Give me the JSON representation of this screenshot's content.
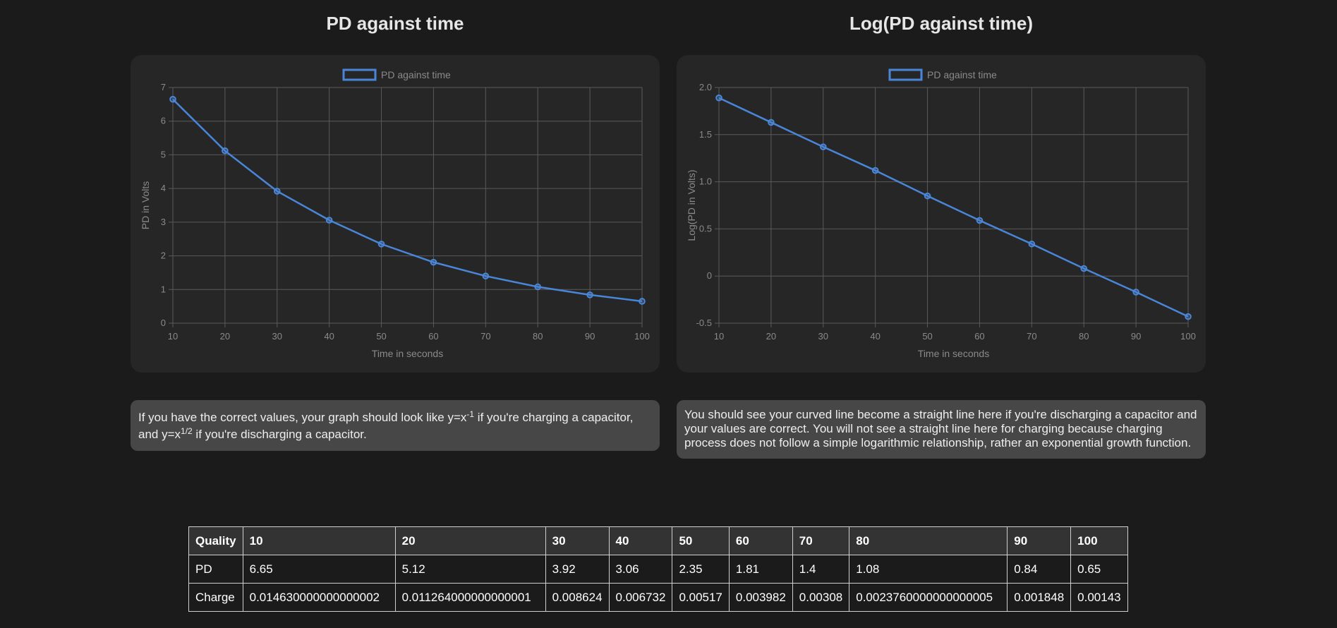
{
  "left_panel": {
    "title": "PD against time",
    "note_parts": [
      "If you have the correct values, your graph should look like y=x",
      "-1",
      " if you're charging a capacitor, and y=x",
      "1/2",
      " if you're discharging a capacitor."
    ]
  },
  "right_panel": {
    "title": "Log(PD against time)",
    "note": "You should see your curved line become a straight line here if you're discharging a capacitor and your values are correct. You will not see a straight line here for charging because charging process does not follow a simple logarithmic relationship, rather an exponential growth function."
  },
  "chart_data": [
    {
      "type": "line",
      "legend": "PD against time",
      "legend_position": "top",
      "xlabel": "Time in seconds",
      "ylabel": "PD in Volts",
      "grid": true,
      "x": [
        10,
        20,
        30,
        40,
        50,
        60,
        70,
        80,
        90,
        100
      ],
      "y": [
        6.65,
        5.12,
        3.92,
        3.06,
        2.35,
        1.81,
        1.4,
        1.08,
        0.84,
        0.65
      ],
      "ylim": [
        0,
        7
      ],
      "yticks": [
        "0",
        "1",
        "2",
        "3",
        "4",
        "5",
        "6",
        "7"
      ],
      "color": "#4a86d8"
    },
    {
      "type": "line",
      "legend": "PD against time",
      "legend_position": "top",
      "xlabel": "Time in seconds",
      "ylabel": "Log(PD in Volts)",
      "grid": true,
      "x": [
        10,
        20,
        30,
        40,
        50,
        60,
        70,
        80,
        90,
        100
      ],
      "y": [
        1.89,
        1.63,
        1.37,
        1.12,
        0.85,
        0.59,
        0.34,
        0.08,
        -0.17,
        -0.43
      ],
      "ylim": [
        -0.5,
        2.0
      ],
      "yticks": [
        "-0.5",
        "0",
        "0.5",
        "1.0",
        "1.5",
        "2.0"
      ],
      "color": "#4a86d8"
    }
  ],
  "table": {
    "header": [
      "Quality",
      "10",
      "20",
      "30",
      "40",
      "50",
      "60",
      "70",
      "80",
      "90",
      "100"
    ],
    "rows": [
      [
        "PD",
        "6.65",
        "5.12",
        "3.92",
        "3.06",
        "2.35",
        "1.81",
        "1.4",
        "1.08",
        "0.84",
        "0.65"
      ],
      [
        "Charge",
        "0.014630000000000002",
        "0.011264000000000001",
        "0.008624",
        "0.006732",
        "0.00517",
        "0.003982",
        "0.00308",
        "0.0023760000000000005",
        "0.001848",
        "0.00143"
      ]
    ]
  }
}
